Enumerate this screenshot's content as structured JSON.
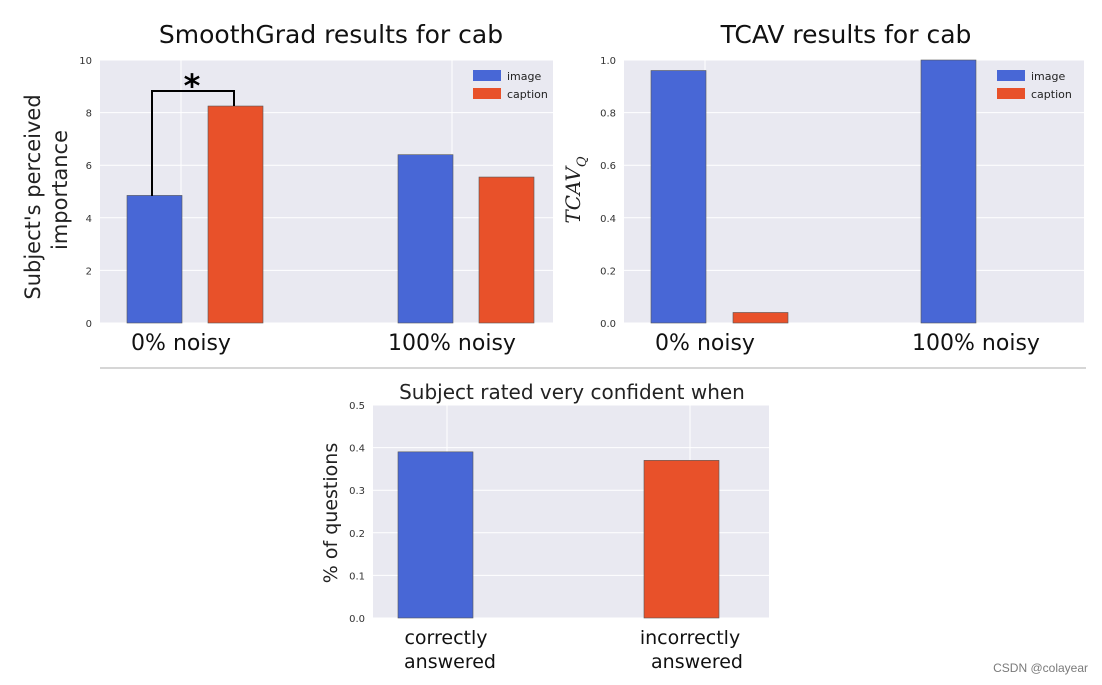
{
  "colors": {
    "image": "#4867d6",
    "caption": "#e8512a",
    "background": "#e9e9f1"
  },
  "chart_data": [
    {
      "id": "smoothgrad",
      "type": "bar",
      "title": "SmoothGrad results for cab",
      "ylabel_lines": [
        "Subject's perceived",
        "importance"
      ],
      "categories": [
        "0% noisy",
        "100% noisy"
      ],
      "series": [
        {
          "name": "image",
          "values": [
            4.85,
            6.4
          ]
        },
        {
          "name": "caption",
          "values": [
            8.25,
            5.55
          ]
        }
      ],
      "ylim": [
        0,
        10
      ],
      "yticks": [
        0,
        2,
        4,
        6,
        8,
        10
      ],
      "legend": [
        "image",
        "caption"
      ],
      "legend_position": "top-right",
      "annotation": "*"
    },
    {
      "id": "tcav",
      "type": "bar",
      "title": "TCAV results for cab",
      "ylabel": "TCAV",
      "ylabel_subscript": "Q",
      "categories": [
        "0% noisy",
        "100% noisy"
      ],
      "series": [
        {
          "name": "image",
          "values": [
            0.96,
            1.0
          ]
        },
        {
          "name": "caption",
          "values": [
            0.04,
            0.0
          ]
        }
      ],
      "ylim": [
        0,
        1.0
      ],
      "yticks": [
        "0.0",
        "0.2",
        "0.4",
        "0.6",
        "0.8",
        "1.0"
      ],
      "legend": [
        "image",
        "caption"
      ],
      "legend_position": "top-right"
    },
    {
      "id": "confidence",
      "type": "bar",
      "title": "Subject rated very confident when",
      "ylabel": "% of questions",
      "categories": [
        [
          "correctly",
          "answered"
        ],
        [
          "incorrectly",
          "answered"
        ]
      ],
      "values": [
        0.39,
        0.37
      ],
      "ylim": [
        0,
        0.5
      ],
      "yticks": [
        "0.0",
        "0.1",
        "0.2",
        "0.3",
        "0.4",
        "0.5"
      ]
    }
  ],
  "watermark": "CSDN @colayear"
}
